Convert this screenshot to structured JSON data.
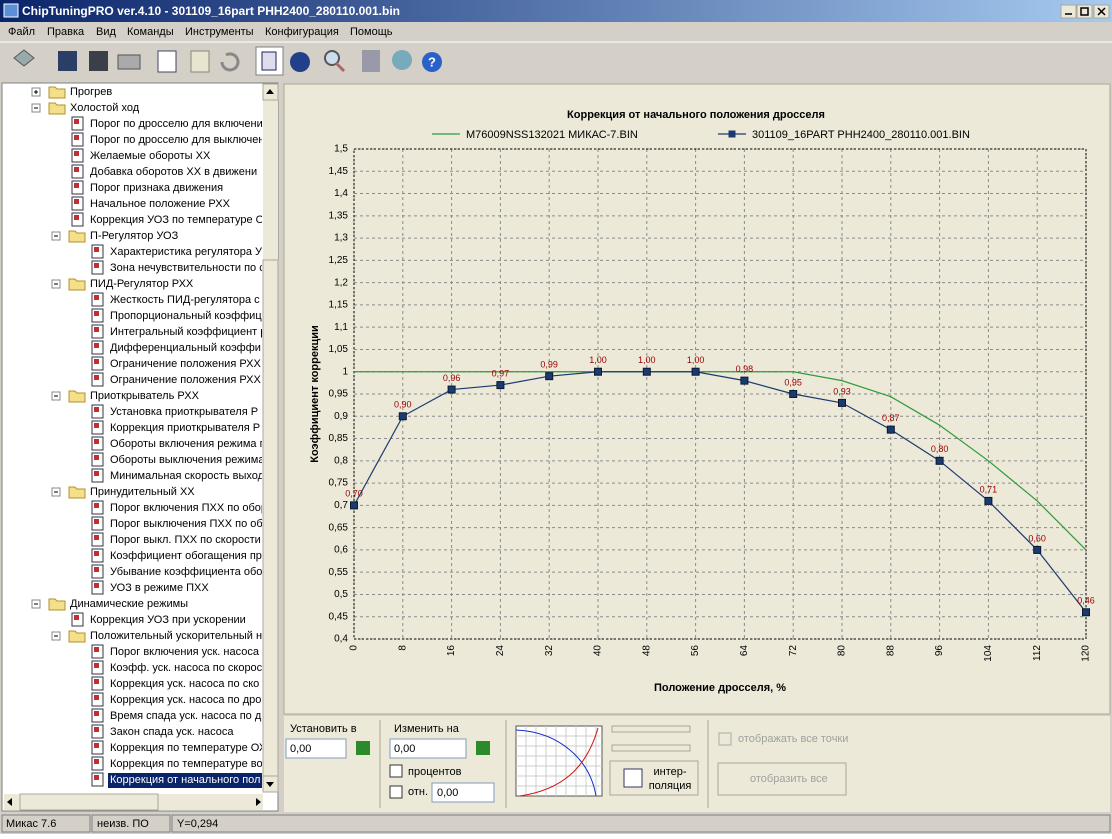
{
  "window": {
    "title": "ChipTuningPRO ver.4.10 - 301109_16part PHH2400_280110.001.bin",
    "menu": [
      "Файл",
      "Правка",
      "Вид",
      "Команды",
      "Инструменты",
      "Конфигурация",
      "Помощь"
    ]
  },
  "tree": [
    {
      "label": "Прогрев",
      "children": []
    },
    {
      "label": "Холостой ход",
      "children": [
        {
          "label": "Порог по дросселю для включени"
        },
        {
          "label": "Порог по дросселю для выключени"
        },
        {
          "label": "Желаемые обороты ХХ"
        },
        {
          "label": "Добавка оборотов ХХ в движени"
        },
        {
          "label": "Порог признака движения"
        },
        {
          "label": "Начальное положение РХХ"
        },
        {
          "label": "Коррекция УОЗ по температуре О"
        },
        {
          "label": "П-Регулятор УОЗ",
          "children": [
            {
              "label": "Характеристика регулятора У"
            },
            {
              "label": "Зона нечувствительности по с"
            }
          ]
        },
        {
          "label": "ПИД-Регулятор РХХ",
          "children": [
            {
              "label": "Жесткость ПИД-регулятора с"
            },
            {
              "label": "Пропорциональный коэффици"
            },
            {
              "label": "Интегральный коэффициент р"
            },
            {
              "label": "Дифференциальный коэффи"
            },
            {
              "label": "Ограничение положения РХХ"
            },
            {
              "label": "Ограничение положения РХХ"
            }
          ]
        },
        {
          "label": "Приоткрыватель РХХ",
          "children": [
            {
              "label": "Установка приоткрывателя Р"
            },
            {
              "label": "Коррекция приоткрывателя Р"
            },
            {
              "label": "Обороты включения режима п"
            },
            {
              "label": "Обороты выключения режима"
            },
            {
              "label": "Минимальная скорость выход"
            }
          ]
        },
        {
          "label": "Принудительный ХХ",
          "children": [
            {
              "label": "Порог включения ПХХ по обор"
            },
            {
              "label": "Порог выключения ПХХ по об"
            },
            {
              "label": "Порог выкл. ПХХ по скорости"
            },
            {
              "label": "Коэффициент обогащения пр"
            },
            {
              "label": "Убывание коэффициента обо"
            },
            {
              "label": "УОЗ в режиме ПХХ"
            }
          ]
        }
      ]
    },
    {
      "label": "Динамические режимы",
      "children": [
        {
          "label": "Коррекция УОЗ при ускорении"
        },
        {
          "label": "Положительный ускорительный н",
          "children": [
            {
              "label": "Порог включения уск. насоса"
            },
            {
              "label": "Коэфф. уск. насоса по скорос"
            },
            {
              "label": "Коррекция уск. насоса по ско"
            },
            {
              "label": "Коррекция уск. насоса по дро"
            },
            {
              "label": "Время спада уск. насоса по д"
            },
            {
              "label": "Закон спада уск. насоса"
            },
            {
              "label": "Коррекция по температуре ОХ"
            },
            {
              "label": "Коррекция по температуре во"
            },
            {
              "label": "Коррекция от начального пол",
              "selected": true
            }
          ]
        }
      ]
    }
  ],
  "chart_data": {
    "type": "line",
    "title": "Коррекция от начального положения дросселя",
    "x_label": "Положение дросселя, %",
    "y_label": "Коэффициент коррекции",
    "x": [
      0,
      8,
      16,
      24,
      32,
      40,
      48,
      56,
      64,
      72,
      80,
      88,
      96,
      104,
      112,
      120
    ],
    "xlim": [
      0,
      120
    ],
    "xticks": [
      0,
      8,
      16,
      24,
      32,
      40,
      48,
      56,
      64,
      72,
      80,
      88,
      96,
      104,
      112,
      120
    ],
    "ylim": [
      0.4,
      1.5
    ],
    "yticks": [
      {
        "value": 0.4,
        "label": "0,4"
      },
      {
        "value": 0.45,
        "label": "0,45"
      },
      {
        "value": 0.5,
        "label": "0,5"
      },
      {
        "value": 0.55,
        "label": "0,55"
      },
      {
        "value": 0.6,
        "label": "0,6"
      },
      {
        "value": 0.65,
        "label": "0,65"
      },
      {
        "value": 0.7,
        "label": "0,7"
      },
      {
        "value": 0.75,
        "label": "0,75"
      },
      {
        "value": 0.8,
        "label": "0,8"
      },
      {
        "value": 0.85,
        "label": "0,85"
      },
      {
        "value": 0.9,
        "label": "0,9"
      },
      {
        "value": 0.95,
        "label": "0,95"
      },
      1,
      {
        "value": 1.05,
        "label": "1,05"
      },
      {
        "value": 1.1,
        "label": "1,1"
      },
      {
        "value": 1.15,
        "label": "1,15"
      },
      {
        "value": 1.2,
        "label": "1,2"
      },
      {
        "value": 1.25,
        "label": "1,25"
      },
      {
        "value": 1.3,
        "label": "1,3"
      },
      {
        "value": 1.35,
        "label": "1,35"
      },
      {
        "value": 1.4,
        "label": "1,4"
      },
      {
        "value": 1.45,
        "label": "1,45"
      },
      {
        "value": 1.5,
        "label": "1,5"
      }
    ],
    "grid": true,
    "series": [
      {
        "name": "M76009NSS132021 МИКАС-7.BIN",
        "color": "#2f9a3a",
        "values": [
          1,
          1,
          1,
          1,
          1,
          1,
          1,
          1,
          1,
          1,
          0.98,
          0.944,
          0.88,
          0.8,
          0.71,
          0.6
        ]
      },
      {
        "name": "301109_16PART PHH2400_280110.001.BIN",
        "color": "#1b3a6e",
        "markers": true,
        "values": [
          0.7,
          0.9,
          0.96,
          0.97,
          0.99,
          1,
          1,
          1,
          0.98,
          0.95,
          0.93,
          0.87,
          0.8,
          0.71,
          0.6,
          0.46
        ],
        "value_labels": [
          "0,70",
          "0,90",
          "0,96",
          "0,97",
          "0,99",
          "1,00",
          "1,00",
          "1,00",
          "0,98",
          "0,95",
          "0,93",
          "0,87",
          "0,80",
          "0,71",
          "0,60",
          "0,46"
        ]
      }
    ]
  },
  "controls": {
    "set_label": "Установить в",
    "set_value": "0,00",
    "change_label": "Изменить на",
    "change_value": "0,00",
    "percent_label": "процентов",
    "rel_label": "отн.",
    "rel_value": "0,00",
    "interp_button": [
      "интер-",
      "поляция"
    ],
    "show_points": "отображать все точки",
    "show_all": "отобразить все"
  },
  "status": [
    "Микас 7.6",
    "неизв. ПО",
    "Y=0,294"
  ]
}
